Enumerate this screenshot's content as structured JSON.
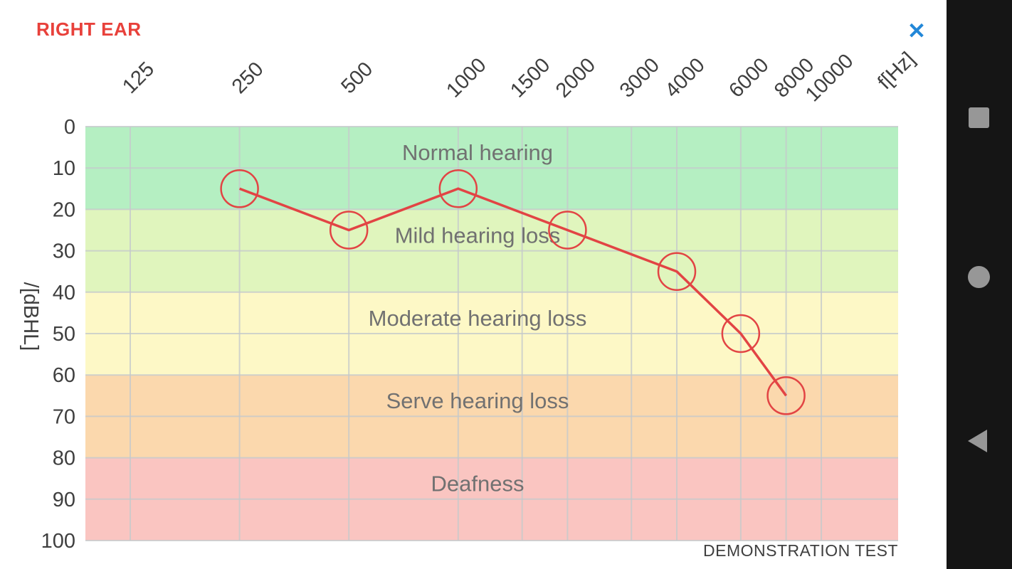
{
  "header": {
    "title": "RIGHT EAR",
    "close_icon": "✕"
  },
  "footer": {
    "note": "DEMONSTRATION TEST"
  },
  "chart_data": {
    "type": "line",
    "x_axis": {
      "label": "f[Hz]",
      "scale": "log2",
      "ticks": [
        125,
        250,
        500,
        1000,
        1500,
        2000,
        3000,
        4000,
        6000,
        8000,
        10000
      ]
    },
    "y_axis": {
      "label": "/[dBHL]",
      "min": 0,
      "max": 100,
      "inverted": true,
      "ticks": [
        0,
        10,
        20,
        30,
        40,
        50,
        60,
        70,
        80,
        90,
        100
      ]
    },
    "bands": [
      {
        "label": "Normal hearing",
        "from": 0,
        "to": 20,
        "color": "#b5efc2"
      },
      {
        "label": "Mild hearing loss",
        "from": 20,
        "to": 40,
        "color": "#e0f5bd"
      },
      {
        "label": "Moderate hearing loss",
        "from": 40,
        "to": 60,
        "color": "#fdf8c6"
      },
      {
        "label": "Serve hearing loss",
        "from": 60,
        "to": 80,
        "color": "#fbd8ad"
      },
      {
        "label": "Deafness",
        "from": 80,
        "to": 100,
        "color": "#fac5c1"
      }
    ],
    "series": [
      {
        "name": "hearing-threshold",
        "color": "#e24444",
        "marker": "open-circle",
        "points": [
          {
            "f": 250,
            "dB": 15
          },
          {
            "f": 500,
            "dB": 25
          },
          {
            "f": 1000,
            "dB": 15
          },
          {
            "f": 2000,
            "dB": 25
          },
          {
            "f": 4000,
            "dB": 35
          },
          {
            "f": 6000,
            "dB": 50
          },
          {
            "f": 8000,
            "dB": 65
          }
        ]
      }
    ],
    "grid": true,
    "legend": "none"
  },
  "nav_bar": {
    "recents_icon": "square",
    "home_icon": "circle",
    "back_icon": "triangle-left"
  },
  "colors": {
    "title": "#e8413b",
    "close": "#2287d8",
    "axis_text": "#3f3f3f",
    "band_label": "#717171",
    "grid": "#c6cacc",
    "navbar_bg": "#151515",
    "navbar_icon": "#979797"
  }
}
